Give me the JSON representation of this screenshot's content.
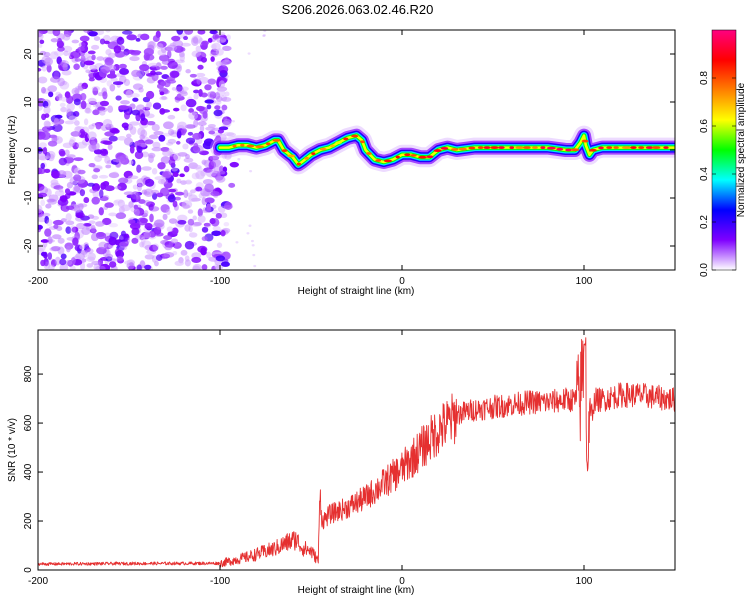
{
  "title": "S206.2026.063.02.46.R20",
  "chart_data": [
    {
      "type": "heatmap",
      "title": "S206.2026.063.02.46.R20",
      "xlabel": "Height of straight line (km)",
      "ylabel": "Frequency (Hz)",
      "xlim": [
        -200,
        150
      ],
      "ylim": [
        -25,
        25
      ],
      "x_ticks": [
        -200,
        -100,
        0,
        100
      ],
      "y_ticks": [
        -20,
        -10,
        0,
        10,
        20
      ],
      "colorbar": {
        "label": "Normalized spectral amplitude",
        "range": [
          0,
          1
        ],
        "ticks": [
          0.0,
          0.2,
          0.4,
          0.6,
          0.8
        ],
        "tick_labels": [
          "0.0",
          "0.2",
          "0.4",
          "0.6",
          "0.8"
        ],
        "colors": [
          "#ffffff",
          "#7f00ff",
          "#0000ff",
          "#00ffff",
          "#00ff00",
          "#ffff00",
          "#ff7f00",
          "#ff0000",
          "#ff0080"
        ]
      },
      "ridge": {
        "x": [
          -100,
          -95,
          -90,
          -85,
          -80,
          -75,
          -70,
          -68,
          -65,
          -60,
          -57,
          -55,
          -50,
          -45,
          -40,
          -35,
          -30,
          -25,
          -22,
          -20,
          -15,
          -10,
          -5,
          0,
          5,
          10,
          15,
          20,
          25,
          30,
          40,
          50,
          60,
          70,
          80,
          90,
          95,
          98,
          100,
          101,
          103,
          105,
          110,
          120,
          130,
          140,
          150
        ],
        "y": [
          0.5,
          0.5,
          1.0,
          1.0,
          0.5,
          1.0,
          2.0,
          2.0,
          0.0,
          -1.5,
          -3.0,
          -2.5,
          -1.0,
          0.0,
          0.5,
          1.5,
          2.5,
          3.0,
          2.0,
          0.0,
          -2.0,
          -2.5,
          -2.0,
          -1.0,
          -1.0,
          -1.5,
          -1.5,
          0.0,
          0.5,
          0.0,
          0.5,
          0.5,
          0.5,
          0.5,
          0.5,
          0.0,
          0.0,
          1.5,
          3.0,
          1.0,
          -1.0,
          0.0,
          0.5,
          0.5,
          0.5,
          0.5,
          0.5
        ]
      },
      "noise_region_x": [
        -200,
        -95
      ]
    },
    {
      "type": "line",
      "xlabel": "Height of straight line (km)",
      "ylabel": "SNR (10 * v/v)",
      "xlim": [
        -200,
        150
      ],
      "ylim": [
        0,
        980
      ],
      "x_ticks": [
        -200,
        -100,
        0,
        100
      ],
      "y_ticks": [
        0,
        200,
        400,
        600,
        800
      ],
      "series": [
        {
          "name": "SNR",
          "color": "#e53030",
          "x": [
            -200,
            -150,
            -100,
            -85,
            -70,
            -62,
            -58,
            -55,
            -50,
            -46,
            -45,
            -44,
            -40,
            -30,
            -20,
            -10,
            0,
            10,
            20,
            30,
            40,
            50,
            60,
            70,
            80,
            90,
            95,
            98,
            100,
            102,
            104,
            106,
            110,
            120,
            130,
            140,
            150
          ],
          "values": [
            25,
            27,
            28,
            55,
            90,
            120,
            130,
            95,
            80,
            40,
            330,
            200,
            230,
            260,
            300,
            360,
            420,
            500,
            580,
            640,
            660,
            670,
            680,
            690,
            690,
            700,
            700,
            720,
            900,
            500,
            640,
            700,
            700,
            720,
            720,
            710,
            700
          ]
        }
      ]
    }
  ]
}
